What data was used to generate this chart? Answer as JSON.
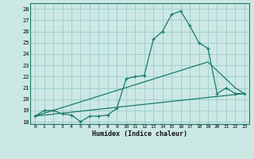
{
  "title": "",
  "xlabel": "Humidex (Indice chaleur)",
  "bg_color": "#cce8e4",
  "grid_color": "#99cccc",
  "line_color": "#1a7a6a",
  "ylim": [
    17.8,
    28.5
  ],
  "xlim": [
    -0.5,
    23.5
  ],
  "yticks": [
    18,
    19,
    20,
    21,
    22,
    23,
    24,
    25,
    26,
    27,
    28
  ],
  "xticks": [
    0,
    1,
    2,
    3,
    4,
    5,
    6,
    7,
    8,
    9,
    10,
    11,
    12,
    13,
    14,
    15,
    16,
    17,
    18,
    19,
    20,
    21,
    22,
    23
  ],
  "series1_x": [
    0,
    1,
    2,
    3,
    4,
    5,
    6,
    7,
    8,
    9,
    10,
    11,
    12,
    13,
    14,
    15,
    16,
    17,
    18,
    19,
    20,
    21,
    22,
    23
  ],
  "series1_y": [
    18.5,
    19.0,
    19.0,
    18.7,
    18.6,
    18.0,
    18.5,
    18.5,
    18.6,
    19.2,
    21.8,
    22.0,
    22.1,
    25.3,
    26.0,
    27.5,
    27.8,
    26.5,
    25.0,
    24.5,
    20.5,
    21.0,
    20.5,
    20.5
  ],
  "series2_x": [
    0,
    23
  ],
  "series2_y": [
    18.5,
    20.5
  ],
  "series3_x": [
    0,
    19,
    22,
    23
  ],
  "series3_y": [
    18.5,
    23.3,
    21.0,
    20.5
  ]
}
